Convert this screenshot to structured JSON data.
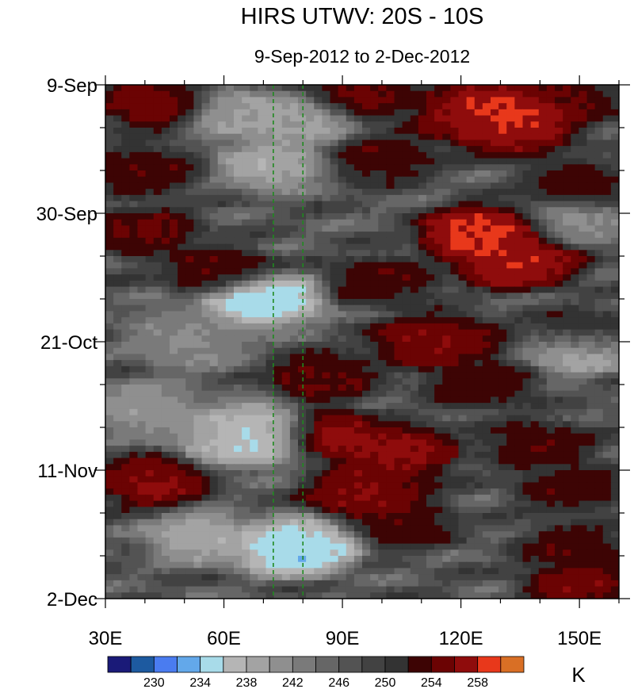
{
  "chart_data": {
    "type": "heatmap",
    "title": "HIRS UTWV: 20S - 10S",
    "subtitle": "9-Sep-2012 to 2-Dec-2012",
    "xlabel": "",
    "ylabel": "",
    "x_range": [
      30,
      160
    ],
    "x_ticks": [
      {
        "value": 30,
        "label": "30E"
      },
      {
        "value": 60,
        "label": "60E"
      },
      {
        "value": 90,
        "label": "90E"
      },
      {
        "value": 120,
        "label": "120E"
      },
      {
        "value": 150,
        "label": "150E"
      }
    ],
    "x_minor_step": 10,
    "time_range_days": [
      0,
      84
    ],
    "y_ticks": [
      {
        "day": 0,
        "label": "9-Sep"
      },
      {
        "day": 21,
        "label": "30-Sep"
      },
      {
        "day": 42,
        "label": "21-Oct"
      },
      {
        "day": 63,
        "label": "11-Nov"
      },
      {
        "day": 84,
        "label": "2-Dec"
      }
    ],
    "y_minor_step_days": 7,
    "reference_lines": [
      {
        "lon": 72.5,
        "color": "#1f8a1f"
      },
      {
        "lon": 80,
        "color": "#1f8a1f"
      }
    ],
    "colorbar": {
      "unit": "K",
      "levels": [
        228,
        230,
        232,
        234,
        236,
        238,
        240,
        242,
        244,
        246,
        248,
        250,
        252,
        254,
        256,
        258,
        260
      ],
      "labels": [
        "230",
        "234",
        "238",
        "242",
        "246",
        "250",
        "254",
        "258"
      ],
      "colors": [
        "#1a1a78",
        "#1d5aa0",
        "#4a7cf0",
        "#63a8ea",
        "#a8dbe9",
        "#b5b5b5",
        "#a3a3a3",
        "#8f8f8f",
        "#7a7a7a",
        "#666666",
        "#535353",
        "#424242",
        "#333333",
        "#3d0404",
        "#6b0303",
        "#8f0c0c",
        "#e8381b",
        "#d96f25"
      ]
    },
    "features": [
      {
        "lon": 125,
        "day": 3,
        "value": 258
      },
      {
        "lon": 133,
        "day": 5,
        "value": 261
      },
      {
        "lon": 122,
        "day": 6,
        "value": 257
      },
      {
        "lon": 135,
        "day": 8,
        "value": 257
      },
      {
        "lon": 42,
        "day": 3,
        "value": 256
      },
      {
        "lon": 95,
        "day": 2,
        "value": 255
      },
      {
        "lon": 145,
        "day": 3,
        "value": 255
      },
      {
        "lon": 65,
        "day": 5,
        "value": 239
      },
      {
        "lon": 80,
        "day": 6,
        "value": 239
      },
      {
        "lon": 72,
        "day": 13,
        "value": 238
      },
      {
        "lon": 40,
        "day": 14,
        "value": 254
      },
      {
        "lon": 100,
        "day": 12,
        "value": 254
      },
      {
        "lon": 150,
        "day": 17,
        "value": 254
      },
      {
        "lon": 40,
        "day": 24,
        "value": 255
      },
      {
        "lon": 128,
        "day": 24,
        "value": 258
      },
      {
        "lon": 124,
        "day": 24.5,
        "value": 260
      },
      {
        "lon": 150,
        "day": 22,
        "value": 241
      },
      {
        "lon": 137,
        "day": 29,
        "value": 257
      },
      {
        "lon": 133,
        "day": 29,
        "value": 259
      },
      {
        "lon": 60,
        "day": 31,
        "value": 255
      },
      {
        "lon": 100,
        "day": 32,
        "value": 254
      },
      {
        "lon": 68,
        "day": 35,
        "value": 235
      },
      {
        "lon": 70,
        "day": 35,
        "value": 233
      },
      {
        "lon": 50,
        "day": 40,
        "value": 242
      },
      {
        "lon": 118,
        "day": 42,
        "value": 255
      },
      {
        "lon": 112,
        "day": 42,
        "value": 257
      },
      {
        "lon": 150,
        "day": 41,
        "value": 254
      },
      {
        "lon": 150,
        "day": 43,
        "value": 236
      },
      {
        "lon": 52,
        "day": 43,
        "value": 242
      },
      {
        "lon": 85,
        "day": 48,
        "value": 255
      },
      {
        "lon": 125,
        "day": 49,
        "value": 254
      },
      {
        "lon": 70,
        "day": 56,
        "value": 236
      },
      {
        "lon": 68,
        "day": 58,
        "value": 234
      },
      {
        "lon": 62,
        "day": 58,
        "value": 238
      },
      {
        "lon": 84,
        "day": 57,
        "value": 258
      },
      {
        "lon": 40,
        "day": 53,
        "value": 240
      },
      {
        "lon": 105,
        "day": 60,
        "value": 256
      },
      {
        "lon": 102,
        "day": 60,
        "value": 258
      },
      {
        "lon": 140,
        "day": 59,
        "value": 254
      },
      {
        "lon": 42,
        "day": 65,
        "value": 257
      },
      {
        "lon": 100,
        "day": 65,
        "value": 255
      },
      {
        "lon": 95,
        "day": 67,
        "value": 257
      },
      {
        "lon": 148,
        "day": 66,
        "value": 254
      },
      {
        "lon": 80,
        "day": 75,
        "value": 235
      },
      {
        "lon": 78,
        "day": 76,
        "value": 233
      },
      {
        "lon": 55,
        "day": 74,
        "value": 238
      },
      {
        "lon": 105,
        "day": 72,
        "value": 254
      },
      {
        "lon": 148,
        "day": 76,
        "value": 254
      },
      {
        "lon": 150,
        "day": 82,
        "value": 256
      }
    ]
  }
}
